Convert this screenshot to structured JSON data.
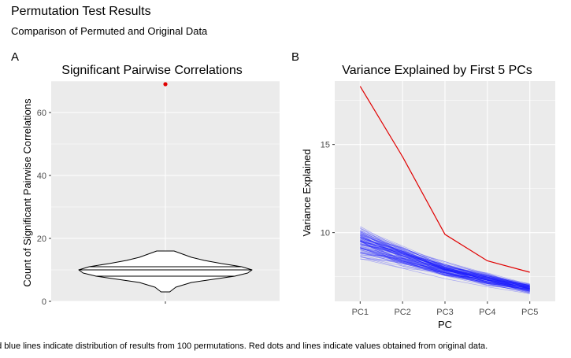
{
  "figure": {
    "title": "Permutation Test Results",
    "subtitle": "Comparison of Permuted and Original Data",
    "caption": "nd blue lines indicate distribution of results from 100 permutations. Red dots and lines indicate values obtained from original data."
  },
  "colors": {
    "panel_bg": "#ebebeb",
    "grid": "#ffffff",
    "original": "#e00000",
    "permuted": "#1a1aff",
    "violin_fill": "#ffffff",
    "violin_stroke": "#000000"
  },
  "chart_data": [
    {
      "tag": "A",
      "type": "violin",
      "title": "Significant Pairwise Correlations",
      "xlabel": "",
      "ylabel": "Count of Significant Pairwise Correlations",
      "ylim": [
        0,
        70
      ],
      "yticks": [
        0,
        20,
        40,
        60
      ],
      "categories": [
        ""
      ],
      "distribution": {
        "name": "permutations",
        "profile": [
          [
            3,
            0.05
          ],
          [
            4.5,
            0.12
          ],
          [
            6,
            0.3
          ],
          [
            7,
            0.55
          ],
          [
            8,
            0.8
          ],
          [
            9,
            0.95
          ],
          [
            10,
            1.0
          ],
          [
            11,
            0.88
          ],
          [
            12,
            0.65
          ],
          [
            13,
            0.45
          ],
          [
            14,
            0.3
          ],
          [
            15,
            0.2
          ],
          [
            16,
            0.1
          ]
        ],
        "quantile_lines": [
          8,
          10,
          11
        ]
      },
      "original_value": 69
    },
    {
      "tag": "B",
      "type": "line",
      "title": "Variance Explained by First 5 PCs",
      "xlabel": "PC",
      "ylabel": "Variance Explained",
      "categories": [
        "PC1",
        "PC2",
        "PC3",
        "PC4",
        "PC5"
      ],
      "ylim": [
        6.1,
        18.6
      ],
      "yticks": [
        10,
        15
      ],
      "series": [
        {
          "values": [
            18.3,
            14.3,
            9.9,
            8.4,
            7.75
          ]
        }
      ],
      "permutation_summary": {
        "count": 100,
        "center": [
          9.5,
          8.7,
          7.9,
          7.35,
          6.85
        ],
        "spread": [
          0.55,
          0.35,
          0.25,
          0.2,
          0.15
        ]
      }
    }
  ]
}
